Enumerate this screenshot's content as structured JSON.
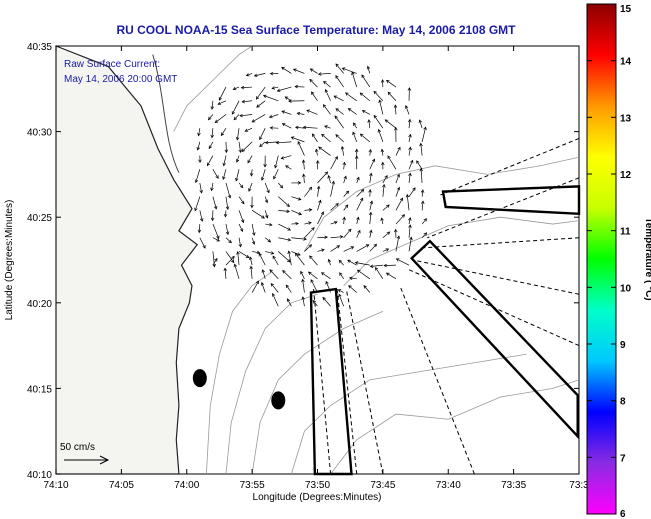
{
  "chart_data": {
    "type": "vector-field-map",
    "title": "RU COOL  NOAA-15  Sea Surface Temperature:  May 14, 2006 2108 GMT",
    "xlabel": "Longitude (Degrees:Minutes)",
    "ylabel": "Latitude (Degrees:Minutes)",
    "annotation_lines": [
      "Raw Surface Current:",
      "May 14, 2006 20:00 GMT"
    ],
    "scale_label": "50 cm/s",
    "x_range_minutes": [
      -10,
      30
    ],
    "y_range_minutes": [
      10,
      35
    ],
    "x_ticks": [
      {
        "value": -10,
        "label": "74:10"
      },
      {
        "value": -5,
        "label": "74:05"
      },
      {
        "value": 0,
        "label": "74:00"
      },
      {
        "value": 5,
        "label": "73:55"
      },
      {
        "value": 10,
        "label": "73:50"
      },
      {
        "value": 15,
        "label": "73:45"
      },
      {
        "value": 20,
        "label": "73:40"
      },
      {
        "value": 25,
        "label": "73:35"
      },
      {
        "value": 30,
        "label": "73:3"
      }
    ],
    "y_ticks": [
      {
        "value": 35,
        "label": "40:35"
      },
      {
        "value": 30,
        "label": "40:30"
      },
      {
        "value": 25,
        "label": "40:25"
      },
      {
        "value": 20,
        "label": "40:20"
      },
      {
        "value": 15,
        "label": "40:15"
      },
      {
        "value": 10,
        "label": "40:10"
      }
    ],
    "colorbar": {
      "label": "Temperature ( °C)",
      "min": 6,
      "max": 15,
      "ticks": [
        "15",
        "14",
        "13",
        "12",
        "11",
        "10",
        "9",
        "8",
        "7",
        "6"
      ],
      "colors": [
        "#ff00ff",
        "#8a2be2",
        "#0000ff",
        "#00c8ff",
        "#00ffc8",
        "#00ff00",
        "#c8ff00",
        "#ffff00",
        "#ff9900",
        "#ff0000",
        "#8b0000"
      ]
    },
    "markers": [
      {
        "lon": 1.0,
        "lat": 15.6
      },
      {
        "lon": 7.0,
        "lat": 14.3
      }
    ],
    "vector_region_box": {
      "lon": [
        1,
        18
      ],
      "lat": [
        19,
        34
      ]
    }
  }
}
